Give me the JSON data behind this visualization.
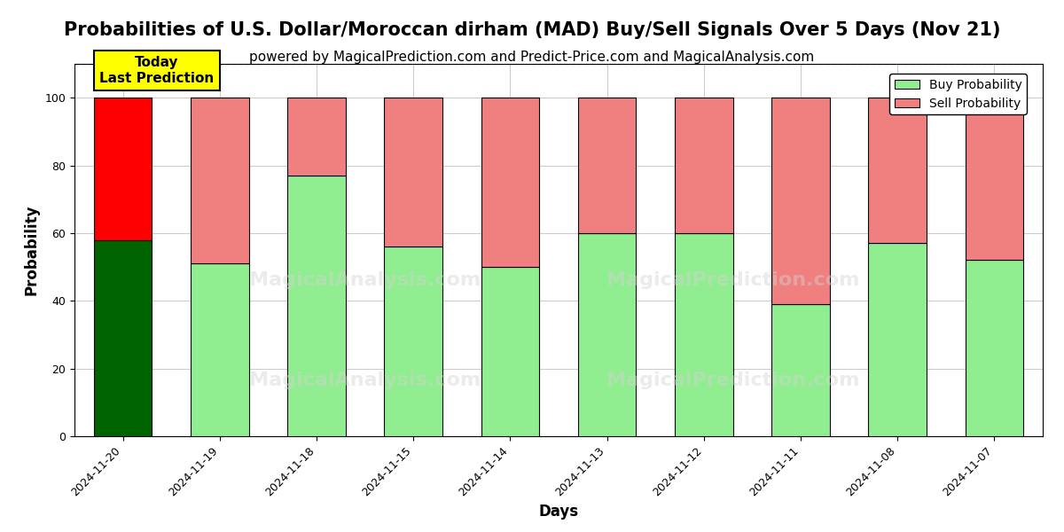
{
  "title": "Probabilities of U.S. Dollar/Moroccan dirham (MAD) Buy/Sell Signals Over 5 Days (Nov 21)",
  "subtitle": "powered by MagicalPrediction.com and Predict-Price.com and MagicalAnalysis.com",
  "xlabel": "Days",
  "ylabel": "Probability",
  "categories": [
    "2024-11-20",
    "2024-11-19",
    "2024-11-18",
    "2024-11-15",
    "2024-11-14",
    "2024-11-13",
    "2024-11-12",
    "2024-11-11",
    "2024-11-08",
    "2024-11-07"
  ],
  "buy_values": [
    58,
    51,
    77,
    56,
    50,
    60,
    60,
    39,
    57,
    52
  ],
  "sell_values": [
    42,
    49,
    23,
    44,
    50,
    40,
    40,
    61,
    43,
    48
  ],
  "today_buy_color": "#006400",
  "today_sell_color": "#ff0000",
  "buy_color": "#90ee90",
  "sell_color": "#f08080",
  "today_index": 0,
  "ylim": [
    0,
    110
  ],
  "yticks": [
    0,
    20,
    40,
    60,
    80,
    100
  ],
  "dashed_line_y": 110,
  "annotation_text": "Today\nLast Prediction",
  "annotation_bg": "#ffff00",
  "watermark1": "MagicalAnalysis.com",
  "watermark2": "MagicalPrediction.com",
  "legend_buy_label": "Buy Probability",
  "legend_sell_label": "Sell Probability",
  "background_color": "#ffffff",
  "grid_color": "#cccccc",
  "bar_width": 0.6,
  "title_fontsize": 15,
  "subtitle_fontsize": 11,
  "axis_label_fontsize": 12,
  "tick_fontsize": 9,
  "legend_fontsize": 10
}
